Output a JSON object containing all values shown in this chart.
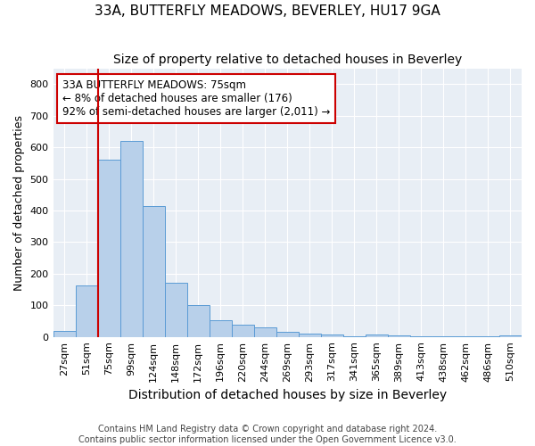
{
  "title": "33A, BUTTERFLY MEADOWS, BEVERLEY, HU17 9GA",
  "subtitle": "Size of property relative to detached houses in Beverley",
  "xlabel": "Distribution of detached houses by size in Beverley",
  "ylabel": "Number of detached properties",
  "categories": [
    "27sqm",
    "51sqm",
    "75sqm",
    "99sqm",
    "124sqm",
    "148sqm",
    "172sqm",
    "196sqm",
    "220sqm",
    "244sqm",
    "269sqm",
    "293sqm",
    "317sqm",
    "341sqm",
    "365sqm",
    "389sqm",
    "413sqm",
    "438sqm",
    "462sqm",
    "486sqm",
    "510sqm"
  ],
  "values": [
    18,
    163,
    560,
    620,
    415,
    170,
    102,
    52,
    40,
    30,
    15,
    10,
    8,
    2,
    8,
    5,
    2,
    1,
    1,
    1,
    4
  ],
  "bar_color": "#b8d0ea",
  "bar_edge_color": "#5b9bd5",
  "highlight_index": 2,
  "highlight_line_color": "#cc0000",
  "annotation_text": "33A BUTTERFLY MEADOWS: 75sqm\n← 8% of detached houses are smaller (176)\n92% of semi-detached houses are larger (2,011) →",
  "annotation_box_color": "#ffffff",
  "annotation_box_edge_color": "#cc0000",
  "ylim": [
    0,
    850
  ],
  "yticks": [
    0,
    100,
    200,
    300,
    400,
    500,
    600,
    700,
    800
  ],
  "bg_color": "#e8eef5",
  "footer": "Contains HM Land Registry data © Crown copyright and database right 2024.\nContains public sector information licensed under the Open Government Licence v3.0.",
  "title_fontsize": 11,
  "subtitle_fontsize": 10,
  "xlabel_fontsize": 10,
  "ylabel_fontsize": 9,
  "tick_fontsize": 8,
  "annotation_fontsize": 8.5,
  "footer_fontsize": 7
}
